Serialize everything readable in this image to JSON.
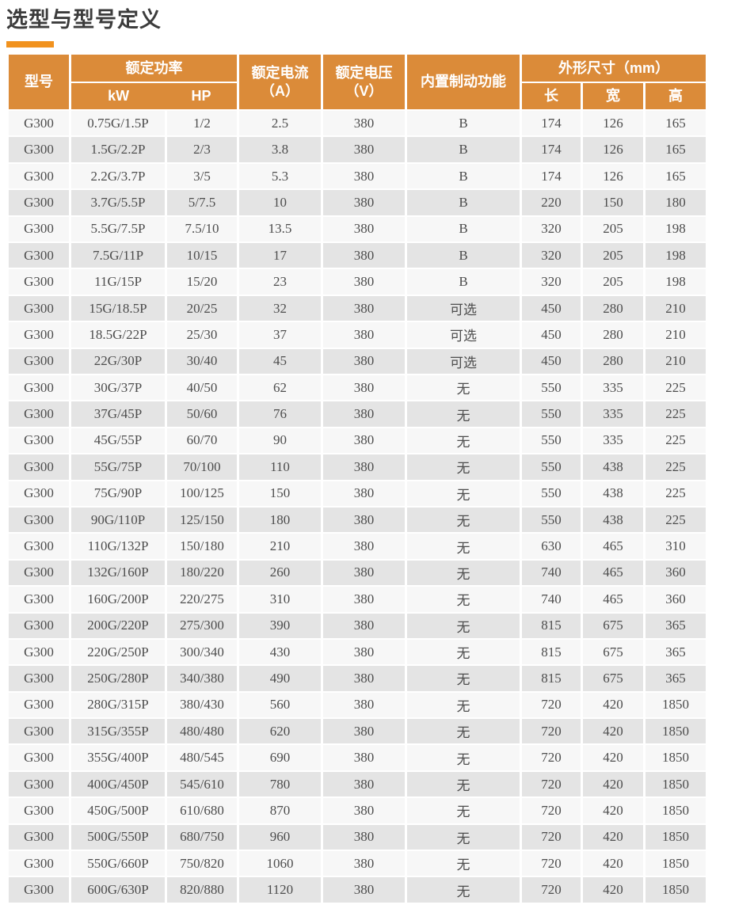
{
  "page": {
    "title": "选型与型号定义"
  },
  "colors": {
    "accent_bar": "#F1921E",
    "header_bg": "#DB8B39",
    "row_light": "#F7F7F7",
    "row_dark": "#E4E4E4",
    "body_text": "#4D4D4D",
    "header_text": "#FFFFFF"
  },
  "table": {
    "header": {
      "model": "型号",
      "rated_power": "额定功率",
      "rated_power_kw": "kW",
      "rated_power_hp": "HP",
      "rated_current_line1": "额定电流",
      "rated_current_line2": "（A）",
      "rated_voltage_line1": "额定电压",
      "rated_voltage_line2": "（V）",
      "brake": "内置制动功能",
      "dimensions": "外形尺寸（mm）",
      "dim_length": "长",
      "dim_width": "宽",
      "dim_height": "高"
    },
    "rows": [
      [
        "G300",
        "0.75G/1.5P",
        "1/2",
        "2.5",
        "380",
        "B",
        "174",
        "126",
        "165"
      ],
      [
        "G300",
        "1.5G/2.2P",
        "2/3",
        "3.8",
        "380",
        "B",
        "174",
        "126",
        "165"
      ],
      [
        "G300",
        "2.2G/3.7P",
        "3/5",
        "5.3",
        "380",
        "B",
        "174",
        "126",
        "165"
      ],
      [
        "G300",
        "3.7G/5.5P",
        "5/7.5",
        "10",
        "380",
        "B",
        "220",
        "150",
        "180"
      ],
      [
        "G300",
        "5.5G/7.5P",
        "7.5/10",
        "13.5",
        "380",
        "B",
        "320",
        "205",
        "198"
      ],
      [
        "G300",
        "7.5G/11P",
        "10/15",
        "17",
        "380",
        "B",
        "320",
        "205",
        "198"
      ],
      [
        "G300",
        "11G/15P",
        "15/20",
        "23",
        "380",
        "B",
        "320",
        "205",
        "198"
      ],
      [
        "G300",
        "15G/18.5P",
        "20/25",
        "32",
        "380",
        "可选",
        "450",
        "280",
        "210"
      ],
      [
        "G300",
        "18.5G/22P",
        "25/30",
        "37",
        "380",
        "可选",
        "450",
        "280",
        "210"
      ],
      [
        "G300",
        "22G/30P",
        "30/40",
        "45",
        "380",
        "可选",
        "450",
        "280",
        "210"
      ],
      [
        "G300",
        "30G/37P",
        "40/50",
        "62",
        "380",
        "无",
        "550",
        "335",
        "225"
      ],
      [
        "G300",
        "37G/45P",
        "50/60",
        "76",
        "380",
        "无",
        "550",
        "335",
        "225"
      ],
      [
        "G300",
        "45G/55P",
        "60/70",
        "90",
        "380",
        "无",
        "550",
        "335",
        "225"
      ],
      [
        "G300",
        "55G/75P",
        "70/100",
        "110",
        "380",
        "无",
        "550",
        "438",
        "225"
      ],
      [
        "G300",
        "75G/90P",
        "100/125",
        "150",
        "380",
        "无",
        "550",
        "438",
        "225"
      ],
      [
        "G300",
        "90G/110P",
        "125/150",
        "180",
        "380",
        "无",
        "550",
        "438",
        "225"
      ],
      [
        "G300",
        "110G/132P",
        "150/180",
        "210",
        "380",
        "无",
        "630",
        "465",
        "310"
      ],
      [
        "G300",
        "132G/160P",
        "180/220",
        "260",
        "380",
        "无",
        "740",
        "465",
        "360"
      ],
      [
        "G300",
        "160G/200P",
        "220/275",
        "310",
        "380",
        "无",
        "740",
        "465",
        "360"
      ],
      [
        "G300",
        "200G/220P",
        "275/300",
        "390",
        "380",
        "无",
        "815",
        "675",
        "365"
      ],
      [
        "G300",
        "220G/250P",
        "300/340",
        "430",
        "380",
        "无",
        "815",
        "675",
        "365"
      ],
      [
        "G300",
        "250G/280P",
        "340/380",
        "490",
        "380",
        "无",
        "815",
        "675",
        "365"
      ],
      [
        "G300",
        "280G/315P",
        "380/430",
        "560",
        "380",
        "无",
        "720",
        "420",
        "1850"
      ],
      [
        "G300",
        "315G/355P",
        "480/480",
        "620",
        "380",
        "无",
        "720",
        "420",
        "1850"
      ],
      [
        "G300",
        "355G/400P",
        "480/545",
        "690",
        "380",
        "无",
        "720",
        "420",
        "1850"
      ],
      [
        "G300",
        "400G/450P",
        "545/610",
        "780",
        "380",
        "无",
        "720",
        "420",
        "1850"
      ],
      [
        "G300",
        "450G/500P",
        "610/680",
        "870",
        "380",
        "无",
        "720",
        "420",
        "1850"
      ],
      [
        "G300",
        "500G/550P",
        "680/750",
        "960",
        "380",
        "无",
        "720",
        "420",
        "1850"
      ],
      [
        "G300",
        "550G/660P",
        "750/820",
        "1060",
        "380",
        "无",
        "720",
        "420",
        "1850"
      ],
      [
        "G300",
        "600G/630P",
        "820/880",
        "1120",
        "380",
        "无",
        "720",
        "420",
        "1850"
      ]
    ]
  }
}
